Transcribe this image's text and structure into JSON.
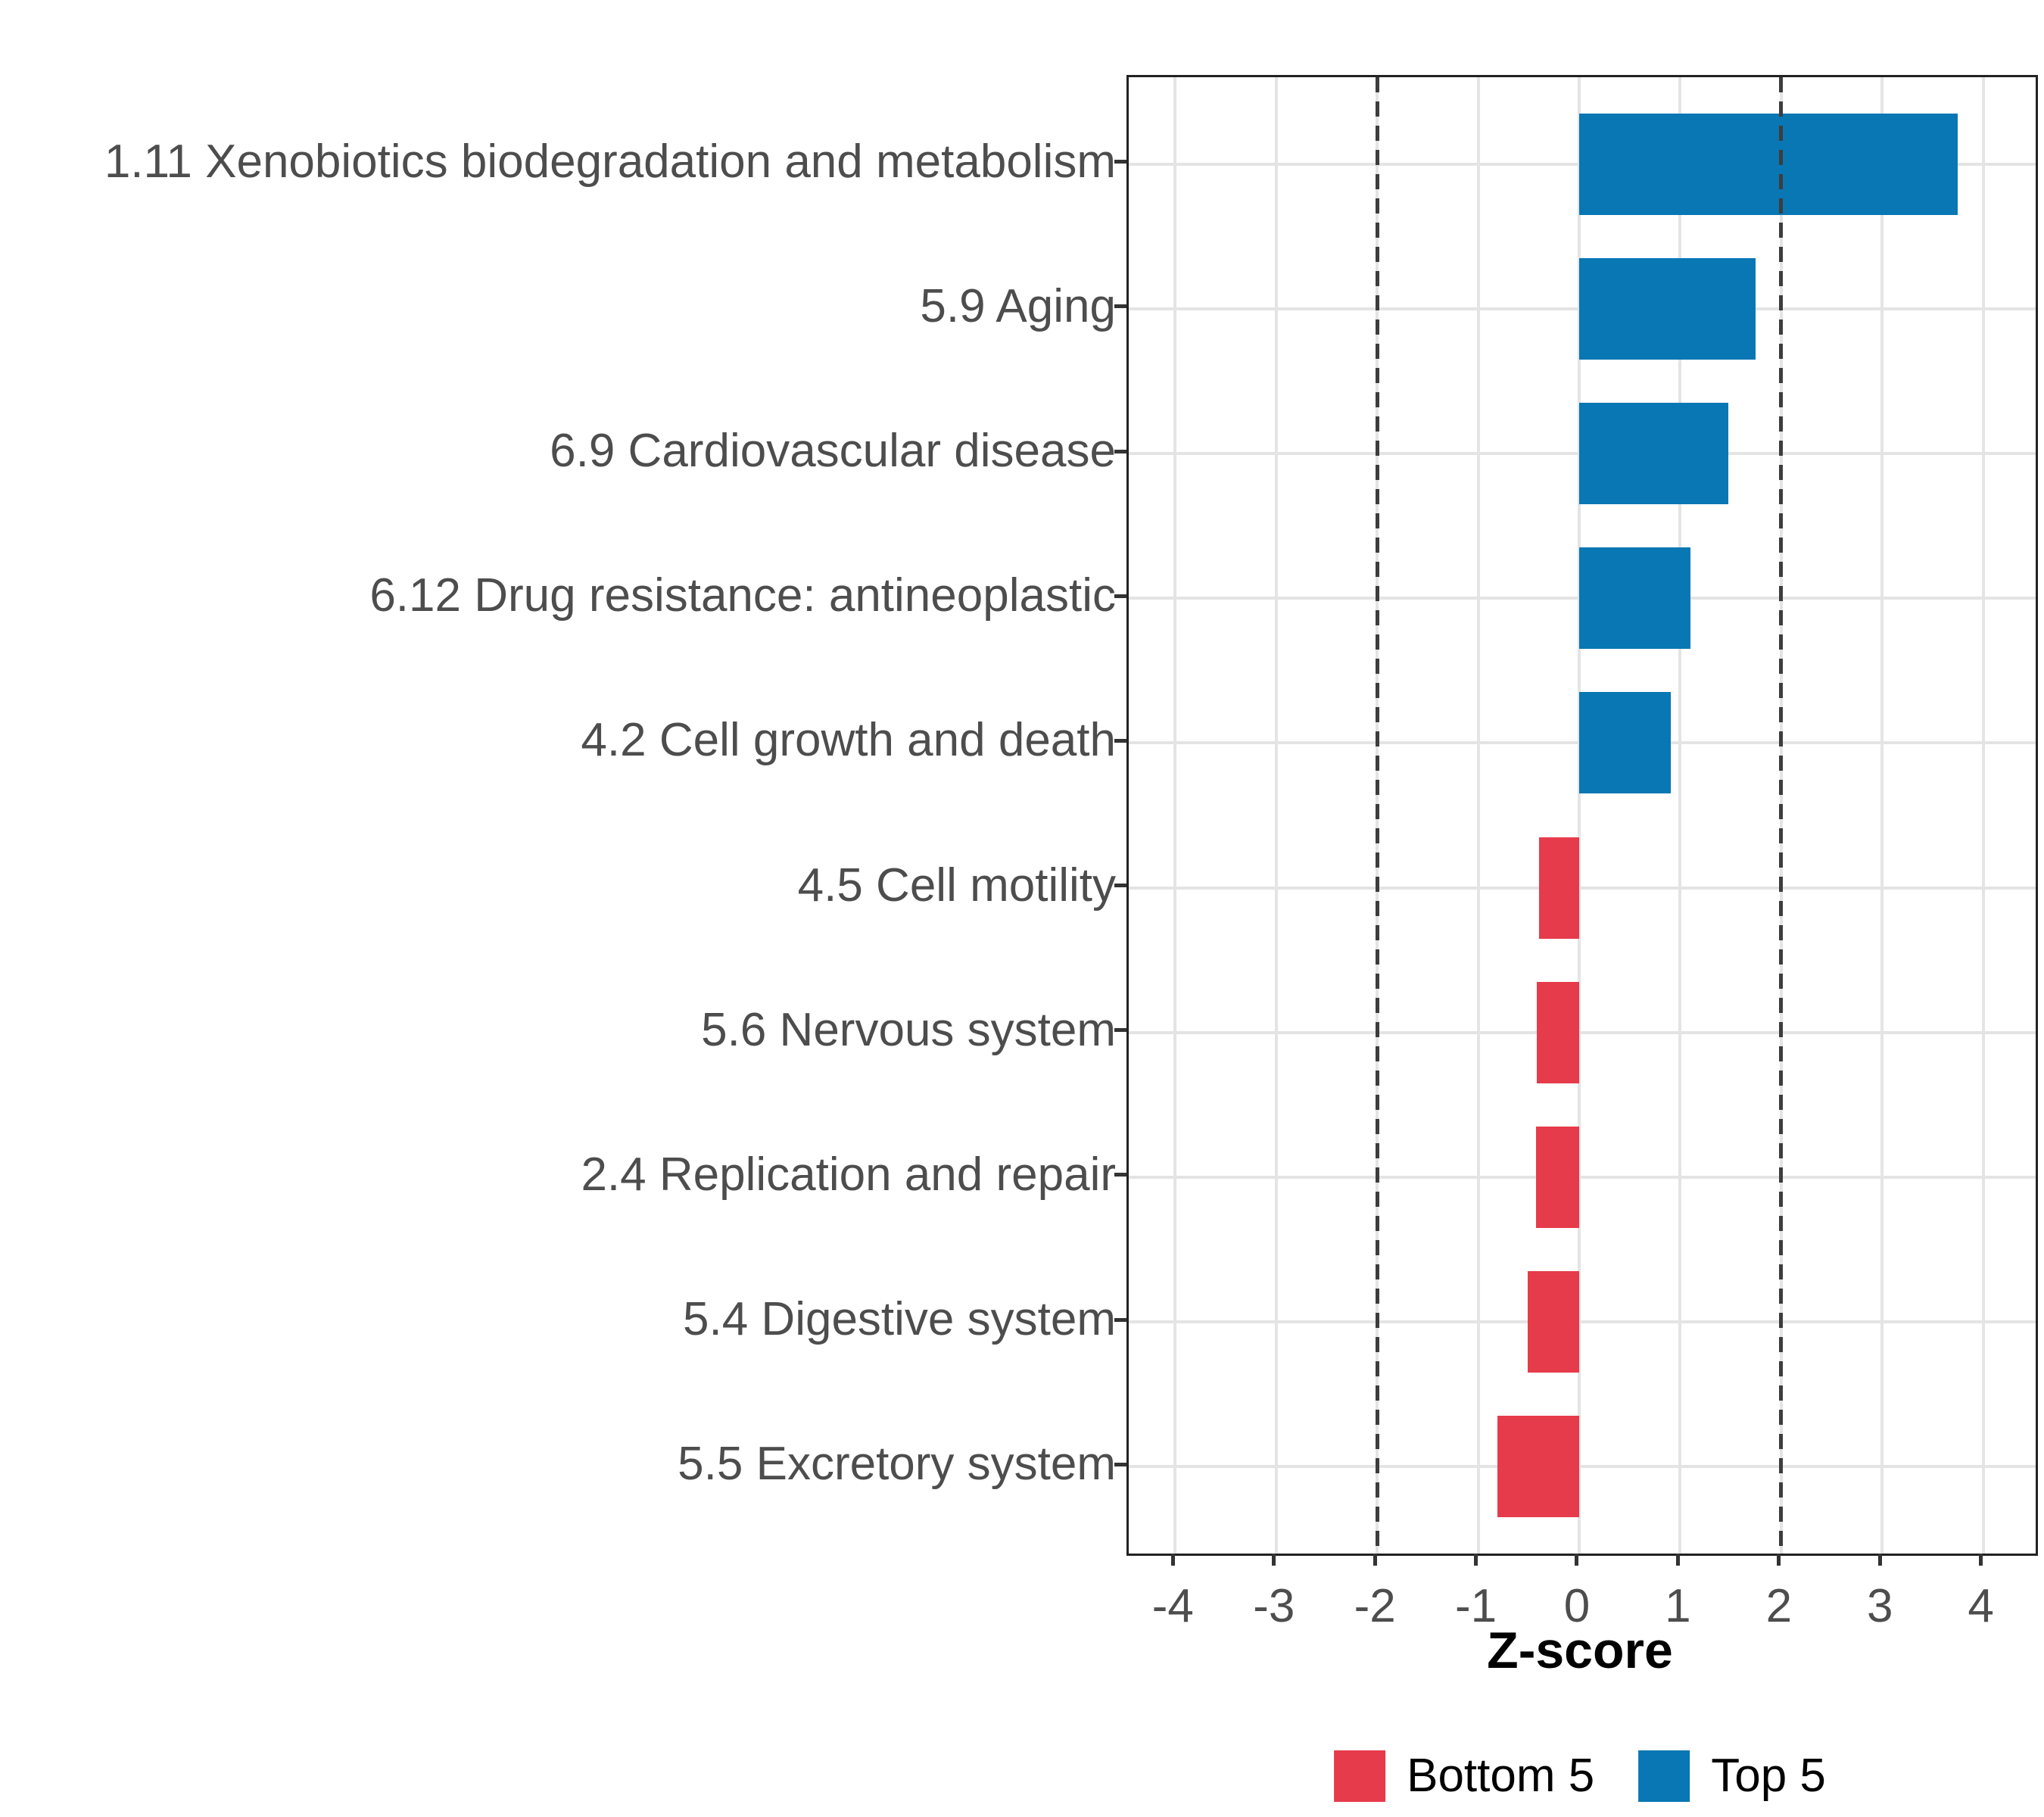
{
  "chart_data": {
    "type": "bar",
    "orientation": "horizontal",
    "title": "",
    "xlabel": "Z-score",
    "ylabel": "",
    "categories": [
      "1.11 Xenobiotics biodegradation and metabolism",
      "5.9 Aging",
      "6.9 Cardiovascular disease",
      "6.12 Drug resistance: antineoplastic",
      "4.2 Cell growth and death",
      "4.5 Cell motility",
      "5.6 Nervous system",
      "2.4 Replication and repair",
      "5.4 Digestive system",
      "5.5 Excretory system"
    ],
    "values": [
      3.75,
      1.75,
      1.48,
      1.1,
      0.91,
      -0.4,
      -0.42,
      -0.43,
      -0.51,
      -0.81
    ],
    "groups": [
      "Top 5",
      "Top 5",
      "Top 5",
      "Top 5",
      "Top 5",
      "Bottom 5",
      "Bottom 5",
      "Bottom 5",
      "Bottom 5",
      "Bottom 5"
    ],
    "x_ticks": [
      "-4",
      "-3",
      "-2",
      "-1",
      "0",
      "1",
      "2",
      "3",
      "4"
    ],
    "xlim": [
      -4.46,
      4.52
    ],
    "reference_lines": [
      -2,
      2
    ],
    "grid": true,
    "legend_position": "bottom",
    "legend": [
      {
        "label": "Bottom 5",
        "color": "#E63B4A"
      },
      {
        "label": "Top 5",
        "color": "#0877B4"
      }
    ],
    "panel_border_color": "#222222",
    "gridline_color": "#e4e4e4",
    "reference_line_color": "#3d3d3d",
    "axis_text_color": "#4d4d4d"
  }
}
